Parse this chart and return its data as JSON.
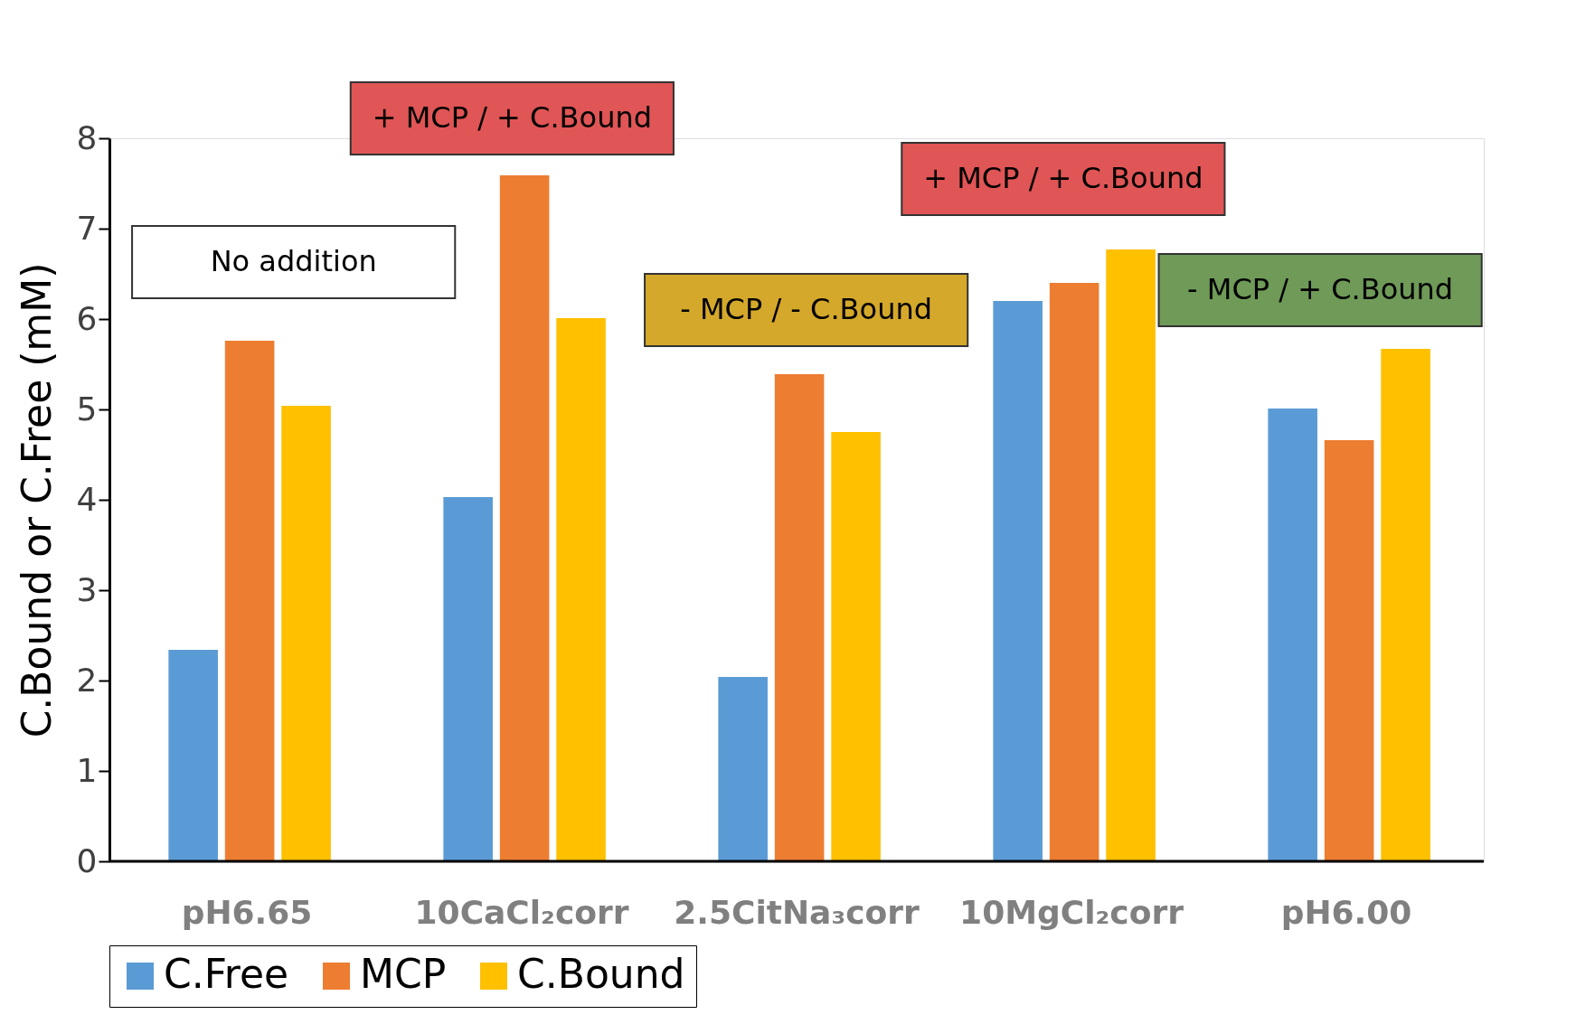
{
  "chart_data": {
    "type": "bar",
    "ylabel": "C.Bound or C.Free (mM)",
    "categories": [
      "pH6.65",
      "10CaCl₂corr",
      "2.5CitNa₃corr",
      "10MgCl₂corr",
      "pH6.00"
    ],
    "series": [
      {
        "name": "C.Free",
        "color": "#5b9bd5",
        "values": [
          2.34,
          4.03,
          2.04,
          6.2,
          5.01
        ]
      },
      {
        "name": "MCP",
        "color": "#ed7d31",
        "values": [
          5.76,
          7.59,
          5.39,
          6.4,
          4.66
        ]
      },
      {
        "name": "C.Bound",
        "color": "#ffc000",
        "values": [
          5.04,
          6.01,
          4.75,
          6.77,
          5.67
        ]
      }
    ],
    "ylim": [
      0,
      8
    ],
    "yticks": [
      0,
      1,
      2,
      3,
      4,
      5,
      6,
      7,
      8
    ],
    "grid": false,
    "legend": "bottom",
    "annotations": [
      "No addition",
      "+ MCP / + C.Bound",
      "- MCP / - C.Bound",
      "+ MCP / + C.Bound",
      "- MCP / + C.Bound"
    ]
  }
}
